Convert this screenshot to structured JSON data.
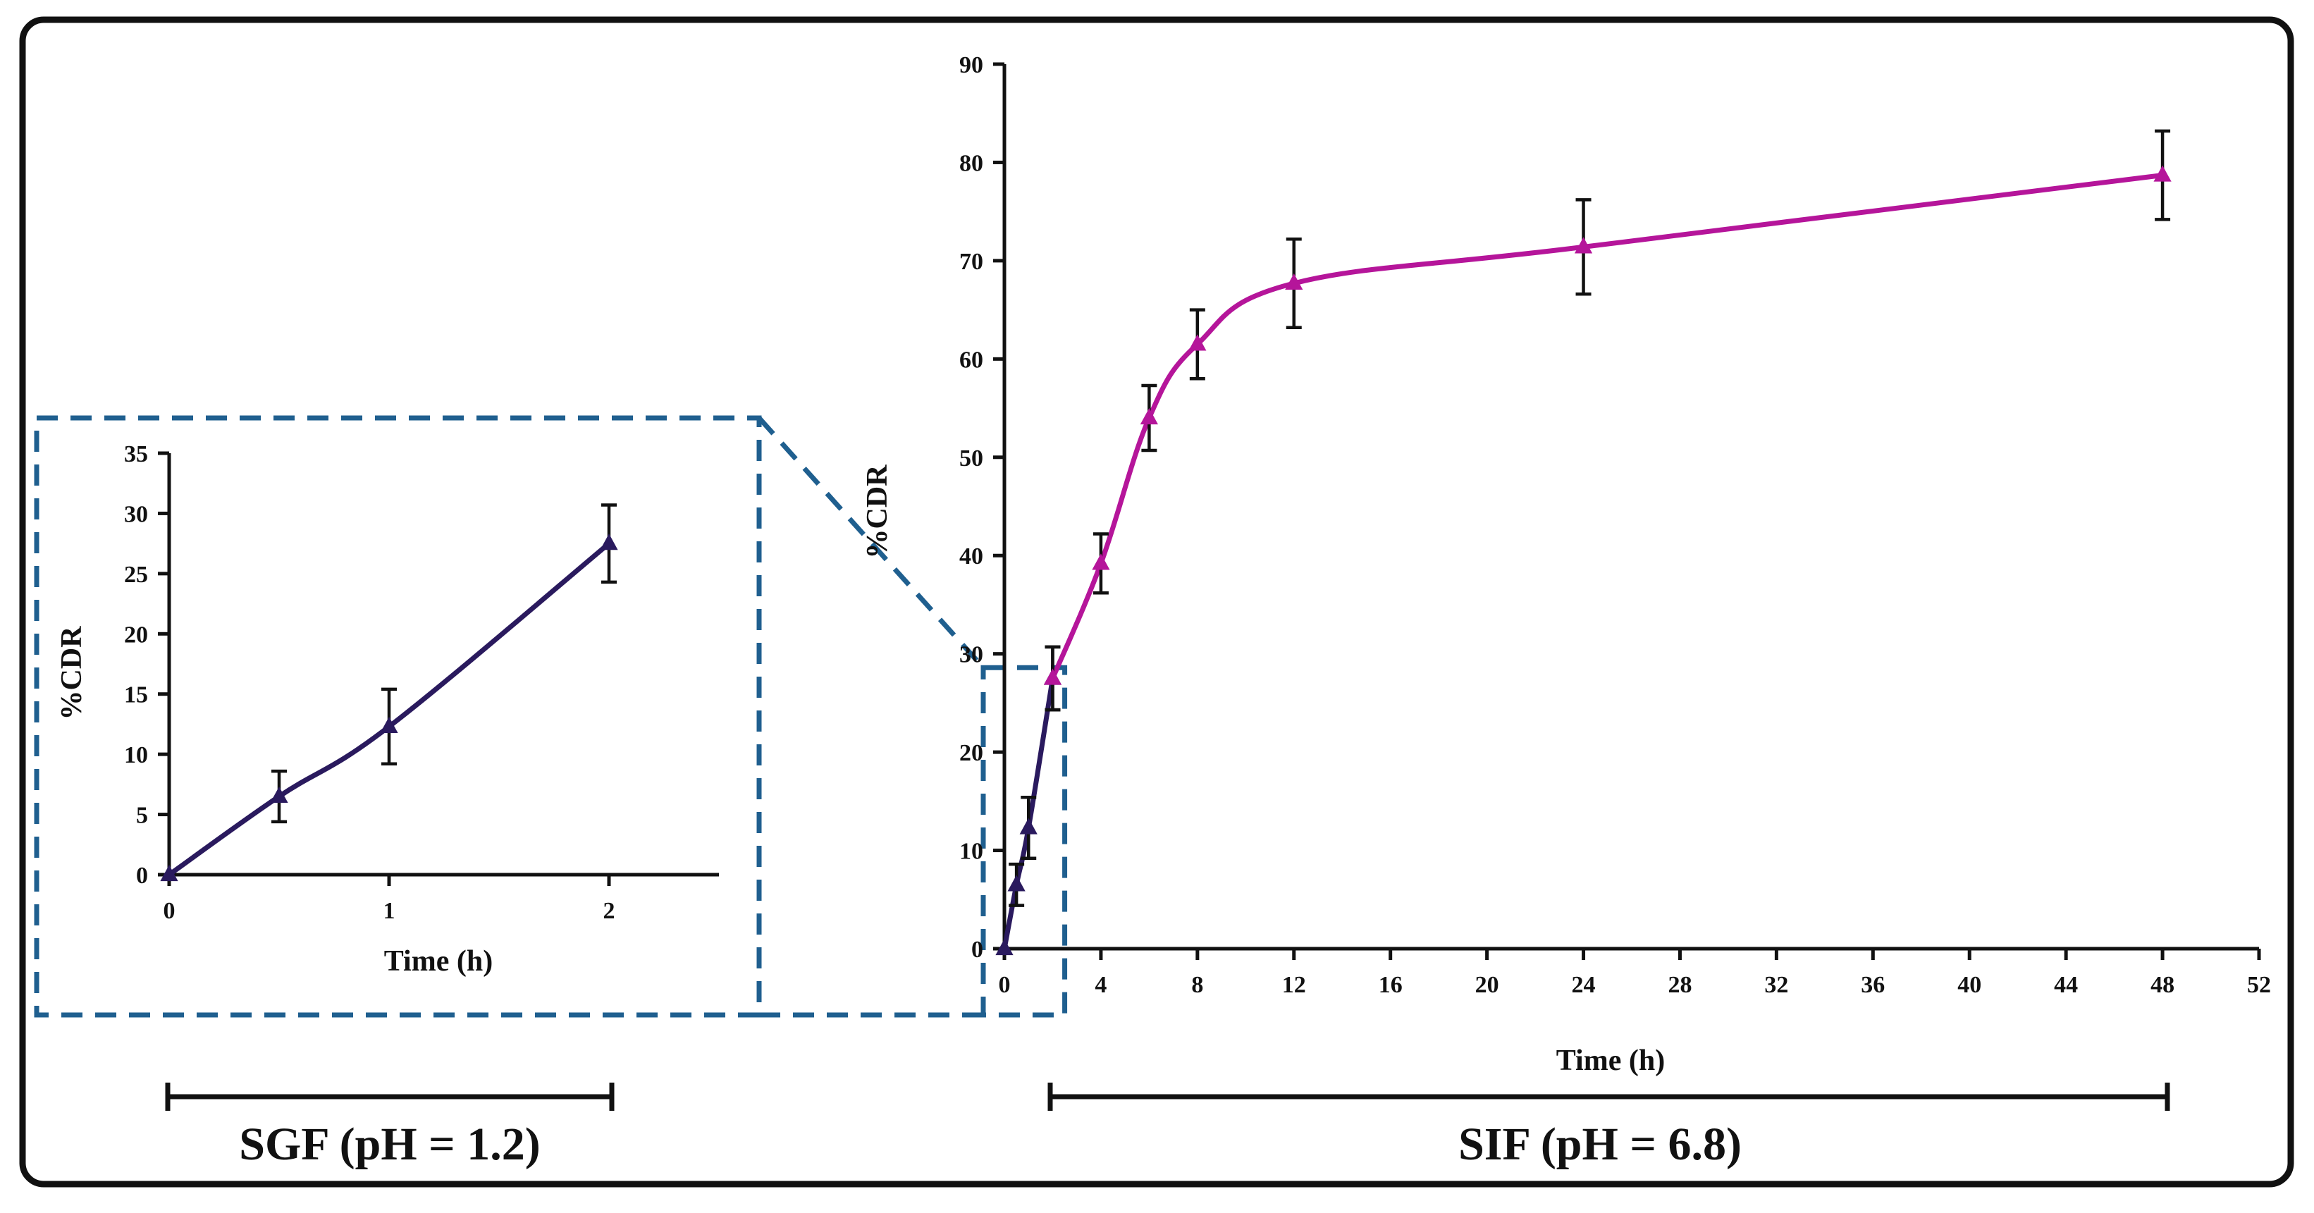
{
  "colors": {
    "sgf_series": "#2a1a5e",
    "sif_series": "#b5159a",
    "zoom_box": "#1f5f8f",
    "axis": "#111111",
    "frame": "#111111"
  },
  "chart_data": [
    {
      "id": "main",
      "type": "line",
      "title": "",
      "xlabel": "Time (h)",
      "ylabel": "%CDR",
      "xlim": [
        0,
        52
      ],
      "ylim": [
        0,
        90
      ],
      "xticks": [
        "0",
        "4",
        "8",
        "12",
        "16",
        "20",
        "24",
        "28",
        "32",
        "36",
        "40",
        "44",
        "48",
        "52"
      ],
      "yticks": [
        "0",
        "10",
        "20",
        "30",
        "40",
        "50",
        "60",
        "70",
        "80",
        "90"
      ],
      "series": [
        {
          "name": "SGF (pH = 1.2)",
          "color": "#2a1a5e",
          "x": [
            0,
            0.5,
            1,
            2
          ],
          "y": [
            0,
            6.5,
            12.3,
            27.5
          ],
          "error": [
            0,
            2.1,
            3.1,
            3.2
          ]
        },
        {
          "name": "SIF (pH = 6.8)",
          "color": "#b5159a",
          "x": [
            2,
            4,
            6,
            8,
            12,
            24,
            48
          ],
          "y": [
            27.5,
            39.2,
            54,
            61.5,
            67.7,
            71.4,
            78.7
          ],
          "error": [
            3.2,
            3.0,
            3.3,
            3.5,
            4.5,
            4.8,
            4.5
          ]
        }
      ]
    },
    {
      "id": "inset",
      "type": "line",
      "title": "",
      "xlabel": "Time (h)",
      "ylabel": "%CDR",
      "xlim": [
        0,
        2.5
      ],
      "ylim": [
        0,
        35
      ],
      "xticks": [
        "0",
        "1",
        "2"
      ],
      "yticks": [
        "0",
        "5",
        "10",
        "15",
        "20",
        "25",
        "30",
        "35"
      ],
      "series": [
        {
          "name": "SGF (pH = 1.2)",
          "color": "#2a1a5e",
          "x": [
            0,
            0.5,
            1,
            2
          ],
          "y": [
            0,
            6.5,
            12.3,
            27.5
          ],
          "error": [
            0,
            2.1,
            3.1,
            3.2
          ]
        }
      ]
    }
  ],
  "phases": {
    "sgf_label": "SGF (pH = 1.2)",
    "sif_label": "SIF (pH = 6.8)"
  }
}
